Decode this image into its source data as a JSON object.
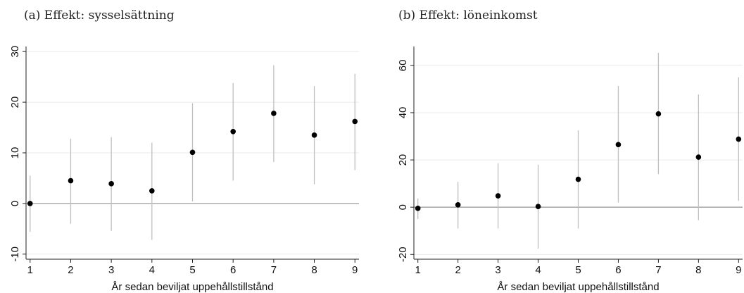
{
  "colors": {
    "ci": "#bfbfbf",
    "point": "#000000",
    "zero": "#9e9e9e",
    "grid": "#ebebeb",
    "axis": "#222222"
  },
  "chart_data": [
    {
      "type": "scatter",
      "title": "(a) Effekt: sysselsättning",
      "xlabel": "År sedan beviljat uppehållstillstånd",
      "ylabel": "",
      "x": [
        1,
        2,
        3,
        4,
        5,
        6,
        7,
        8,
        9
      ],
      "estimate": [
        0,
        4.5,
        3.9,
        2.5,
        10.1,
        14.2,
        17.8,
        13.5,
        16.2
      ],
      "ci_lower": [
        -5.6,
        -4,
        -5.4,
        -7.2,
        0.4,
        4.5,
        8.2,
        3.8,
        6.6
      ],
      "ci_upper": [
        5.5,
        12.8,
        13.1,
        12,
        19.8,
        23.8,
        27.3,
        23.2,
        25.6
      ],
      "xlim": [
        0.9,
        9.1
      ],
      "ylim": [
        -11,
        31
      ],
      "yticks": [
        -10,
        0,
        10,
        20,
        30
      ],
      "ytick_labels": [
        "-10",
        "0",
        "10",
        "20",
        "30"
      ],
      "xticks": [
        1,
        2,
        3,
        4,
        5,
        6,
        7,
        8,
        9
      ],
      "xtick_labels": [
        "1",
        "2",
        "3",
        "4",
        "5",
        "6",
        "7",
        "8",
        "9"
      ],
      "grid": true,
      "reference_line": 0
    },
    {
      "type": "scatter",
      "title": "(b) Effekt: löneinkomst",
      "xlabel": "År sedan beviljat uppehållstillstånd",
      "ylabel": "",
      "x": [
        1,
        2,
        3,
        4,
        5,
        6,
        7,
        8,
        9
      ],
      "estimate": [
        -0.5,
        1,
        4.8,
        0.3,
        11.8,
        26.5,
        39.5,
        21.2,
        28.8
      ],
      "ci_lower": [
        -5,
        -9,
        -9,
        -17.5,
        -9,
        2,
        14,
        -5.5,
        2.7
      ],
      "ci_upper": [
        3.7,
        10.7,
        18.6,
        18,
        32.5,
        51.3,
        65.3,
        47.7,
        55
      ],
      "xlim": [
        0.9,
        9.1
      ],
      "ylim": [
        -22,
        68
      ],
      "yticks": [
        -20,
        0,
        20,
        40,
        60
      ],
      "ytick_labels": [
        "-20",
        "0",
        "20",
        "40",
        "60"
      ],
      "xticks": [
        1,
        2,
        3,
        4,
        5,
        6,
        7,
        8,
        9
      ],
      "xtick_labels": [
        "1",
        "2",
        "3",
        "4",
        "5",
        "6",
        "7",
        "8",
        "9"
      ],
      "grid": true,
      "reference_line": 0
    }
  ]
}
